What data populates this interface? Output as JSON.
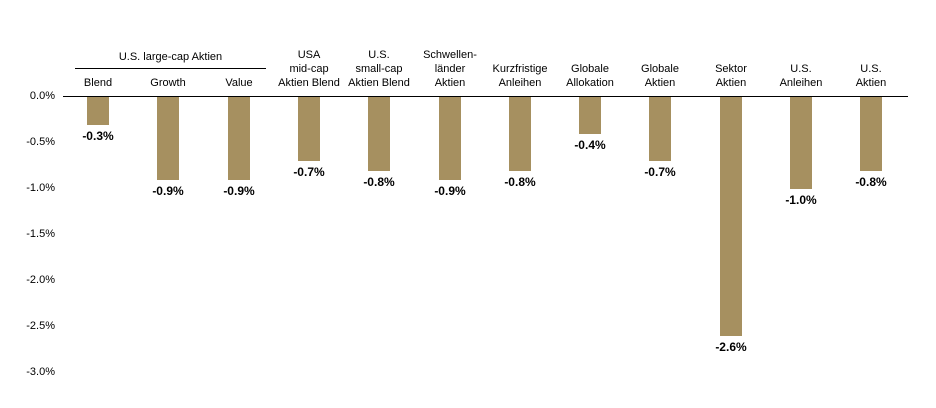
{
  "chart_data": {
    "type": "bar",
    "title": "",
    "xlabel": "",
    "ylabel": "",
    "unit": "%",
    "bar_color": "#A69060",
    "axis_color": "#000000",
    "ylim": [
      -3.0,
      0.0
    ],
    "grid": false,
    "legend": "none",
    "yticks": [
      {
        "label": "0.0%",
        "value": 0.0
      },
      {
        "label": "-0.5%",
        "value": -0.5
      },
      {
        "label": "-1.0%",
        "value": -1.0
      },
      {
        "label": "-1.5%",
        "value": -1.5
      },
      {
        "label": "-2.0%",
        "value": -2.0
      },
      {
        "label": "-2.5%",
        "value": -2.5
      },
      {
        "label": "-3.0%",
        "value": -3.0
      }
    ],
    "group_header": {
      "label": "U.S. large-cap Aktien",
      "start_index": 0,
      "end_index": 2
    },
    "categories": [
      "Blend",
      "Growth",
      "Value",
      "USA\nmid-cap\nAktien Blend",
      "U.S.\nsmall-cap\nAktien Blend",
      "Schwellen-\nländer\nAktien",
      "Kurzfristige\nAnleihen",
      "Globale\nAllokation",
      "Globale\nAktien",
      "Sektor\nAktien",
      "U.S.\nAnleihen",
      "U.S.\nAktien"
    ],
    "values": [
      -0.3,
      -0.9,
      -0.9,
      -0.7,
      -0.8,
      -0.9,
      -0.8,
      -0.4,
      -0.7,
      -2.6,
      -1.0,
      -0.8
    ],
    "value_labels": [
      "-0.3%",
      "-0.9%",
      "-0.9%",
      "-0.7%",
      "-0.8%",
      "-0.9%",
      "-0.8%",
      "-0.4%",
      "-0.7%",
      "-2.6%",
      "-1.0%",
      "-0.8%"
    ]
  }
}
